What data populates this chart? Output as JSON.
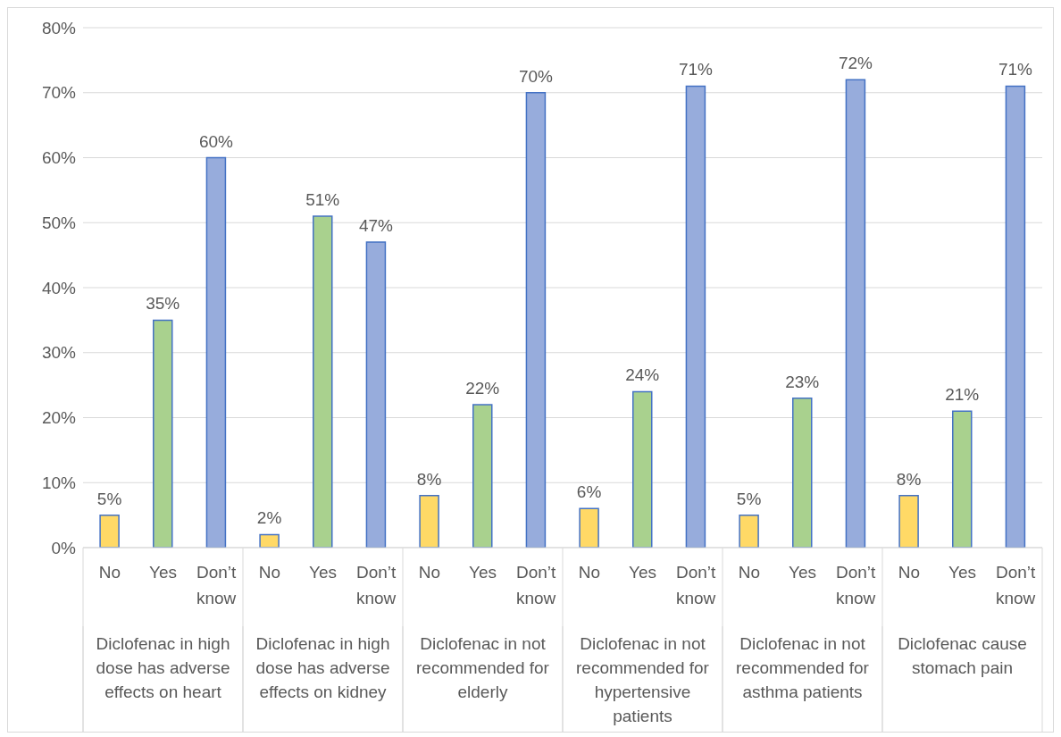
{
  "chart_data": {
    "type": "bar",
    "categories": [
      "No",
      "Yes",
      "Don’t know",
      "No",
      "Yes",
      "Don’t know",
      "No",
      "Yes",
      "Don’t know",
      "No",
      "Yes",
      "Don’t know",
      "No",
      "Yes",
      "Don’t know",
      "No",
      "Yes",
      "Don’t know"
    ],
    "values": [
      5,
      35,
      60,
      2,
      51,
      47,
      8,
      22,
      70,
      6,
      24,
      71,
      5,
      23,
      72,
      8,
      21,
      71
    ],
    "colors": [
      "#ffd966",
      "#a9d18e",
      "#97acdc",
      "#ffd966",
      "#a9d18e",
      "#97acdc",
      "#ffd966",
      "#a9d18e",
      "#97acdc",
      "#ffd966",
      "#a9d18e",
      "#97acdc",
      "#ffd966",
      "#a9d18e",
      "#97acdc",
      "#ffd966",
      "#a9d18e",
      "#97acdc"
    ],
    "value_labels": [
      "5%",
      "35%",
      "60%",
      "2%",
      "51%",
      "47%",
      "8%",
      "22%",
      "70%",
      "6%",
      "24%",
      "71%",
      "5%",
      "23%",
      "72%",
      "8%",
      "21%",
      "71%"
    ],
    "annotations": [
      "Diclofenac in high dose has adverse effects on heart",
      "Diclofenac in high dose has adverse effects on kidney",
      "Diclofenac in not recommended for elderly",
      "Diclofenac in not recommended for hypertensive patients",
      "Diclofenac in not recommended for asthma patients",
      "Diclofenac cause stomach pain"
    ],
    "ylim": [
      0,
      80
    ],
    "yticks": [
      {
        "value": 0,
        "label": "0%"
      },
      {
        "value": 10,
        "label": "10%"
      },
      {
        "value": 20,
        "label": "20%"
      },
      {
        "value": 30,
        "label": "30%"
      },
      {
        "value": 40,
        "label": "40%"
      },
      {
        "value": 50,
        "label": "50%"
      },
      {
        "value": 60,
        "label": "60%"
      },
      {
        "value": 70,
        "label": "70%"
      },
      {
        "value": 80,
        "label": "80%"
      }
    ],
    "grid": "y"
  }
}
